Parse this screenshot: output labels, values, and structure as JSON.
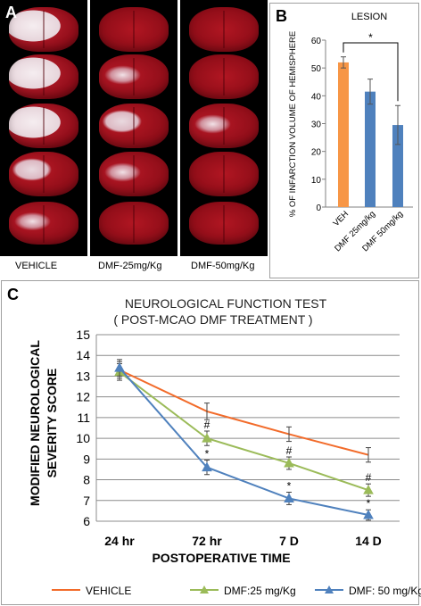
{
  "photo_panel": {
    "letter": "A",
    "labels": [
      "VEHICLE",
      "DMF-25mg/Kg",
      "DMF-50mg/Kg"
    ]
  },
  "chart_data": [
    {
      "type": "bar",
      "panel_letter": "B",
      "title": "LESION",
      "ylabel": "% OF INFARCTION VOLUME OF HEMISPHERE",
      "categories": [
        "VEH",
        "DMF 25mg/kg",
        "DMF 50mg/kg"
      ],
      "values": [
        52,
        41.5,
        29.5
      ],
      "errors": [
        2,
        4.5,
        7
      ],
      "colors": [
        "#f79646",
        "#4f81bd",
        "#4f81bd"
      ],
      "ylim": [
        0,
        60
      ],
      "yticks": [
        0,
        10,
        20,
        30,
        40,
        50,
        60
      ],
      "annotation": "*",
      "grid": false
    },
    {
      "type": "line",
      "panel_letter": "C",
      "title": "NEUROLOGICAL FUNCTION TEST",
      "subtitle": "( POST-MCAO DMF TREATMENT )",
      "xlabel": "POSTOPERATIVE TIME",
      "ylabel": [
        "MODIFIED NEUROLOGICAL",
        "SEVERITY SCORE"
      ],
      "categories": [
        "24 hr",
        "72 hr",
        "7 D",
        "14 D"
      ],
      "ylim": [
        6,
        15
      ],
      "yticks": [
        6,
        7,
        8,
        9,
        10,
        11,
        12,
        13,
        14,
        15
      ],
      "grid": true,
      "legend_position": "bottom",
      "series": [
        {
          "name": "VEHICLE",
          "color": "#f26b2a",
          "marker": "none",
          "values": [
            13.3,
            11.3,
            10.2,
            9.2
          ],
          "errors": [
            0.4,
            0.4,
            0.35,
            0.35
          ],
          "labels": [
            "",
            "",
            "",
            ""
          ]
        },
        {
          "name": "DMF:25 mg/Kg",
          "color": "#9bbb59",
          "marker": "triangle",
          "values": [
            13.2,
            10.0,
            8.8,
            7.5
          ],
          "errors": [
            0.4,
            0.35,
            0.3,
            0.3
          ],
          "labels": [
            "",
            "#",
            "#",
            "#"
          ]
        },
        {
          "name": "DMF: 50 mg/Kg",
          "color": "#4f81bd",
          "marker": "triangle",
          "values": [
            13.4,
            8.6,
            7.1,
            6.3
          ],
          "errors": [
            0.4,
            0.35,
            0.3,
            0.25
          ],
          "labels": [
            "",
            "*",
            "*",
            "*"
          ]
        }
      ]
    }
  ]
}
